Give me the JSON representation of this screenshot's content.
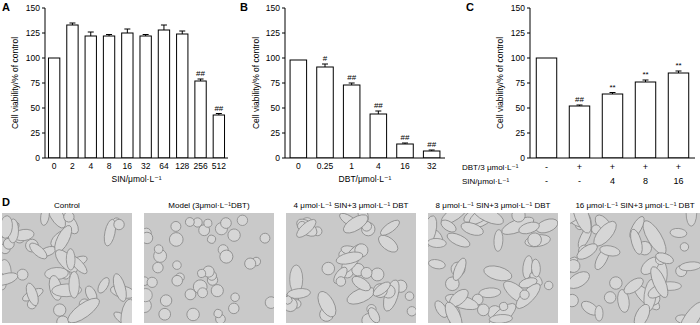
{
  "chart_data": [
    {
      "type": "bar",
      "panel": "A",
      "y_label": "Cell viability/% of control",
      "x_label": "SIN/μmol·L⁻¹",
      "categories": [
        "0",
        "2",
        "4",
        "8",
        "16",
        "32",
        "64",
        "128",
        "256",
        "512"
      ],
      "values": [
        100,
        133,
        122,
        122,
        125,
        122,
        128,
        124,
        77,
        43
      ],
      "errors": [
        0,
        2,
        4,
        1.5,
        4,
        1.5,
        5,
        3,
        2,
        1.5
      ],
      "significance": [
        null,
        null,
        null,
        null,
        null,
        null,
        null,
        null,
        "##",
        "##"
      ],
      "color": "#ffffff",
      "ylim": [
        0,
        150
      ],
      "yticks": [
        0,
        25,
        50,
        75,
        100,
        125,
        150
      ]
    },
    {
      "type": "bar",
      "panel": "B",
      "y_label": "Cell viability/% of control",
      "x_label": "DBT/μmol·L⁻¹",
      "categories": [
        "0",
        "0.25",
        "1",
        "4",
        "16",
        "32"
      ],
      "values": [
        98,
        91,
        73,
        44,
        14,
        7
      ],
      "errors": [
        0,
        3,
        2,
        3,
        1,
        1
      ],
      "significance": [
        null,
        "#",
        "##",
        "##",
        "##",
        "##"
      ],
      "color": "#ffffff",
      "ylim": [
        0,
        150
      ],
      "yticks": [
        0,
        25,
        50,
        75,
        100,
        125,
        150
      ]
    },
    {
      "type": "bar",
      "panel": "C",
      "y_label": "Cell viability/% of control",
      "categories": [
        null,
        null,
        null,
        null,
        null
      ],
      "x_rows": [
        {
          "label": "DBT/3 μmol·L⁻¹",
          "values": [
            "-",
            "+",
            "+",
            "+",
            "+"
          ]
        },
        {
          "label": "SIN/μmol·L⁻¹",
          "values": [
            "-",
            "-",
            "4",
            "8",
            "16"
          ]
        }
      ],
      "values": [
        100,
        52,
        64,
        76,
        85
      ],
      "errors": [
        0,
        1,
        1.5,
        2,
        2
      ],
      "significance": [
        null,
        "##",
        "**",
        "**",
        "**"
      ],
      "color": "#ffffff",
      "ylim": [
        0,
        150
      ],
      "yticks": [
        0,
        25,
        50,
        75,
        100,
        125,
        150
      ]
    }
  ],
  "panel_d": {
    "panel": "D",
    "images": [
      {
        "caption": "Control"
      },
      {
        "caption": "Model (3μmol·L⁻¹DBT)"
      },
      {
        "caption": "4 μmol·L⁻¹ SIN+3 μmol·L⁻¹ DBT"
      },
      {
        "caption": "8 μmol·L⁻¹ SIN+3 μmol·L⁻¹ DBT"
      },
      {
        "caption": "16 μmol·L⁻¹ SIN+3 μmol·L⁻¹ DBT"
      }
    ]
  }
}
